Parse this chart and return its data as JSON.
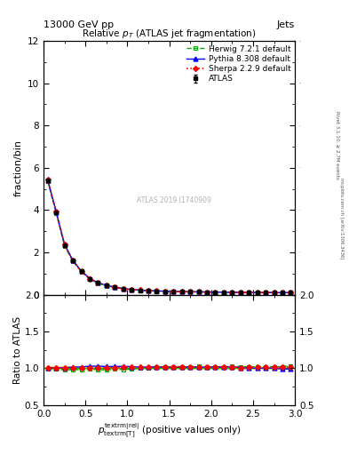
{
  "title": "Relative $p_{T}$ (ATLAS jet fragmentation)",
  "header_left": "13000 GeV pp",
  "header_right": "Jets",
  "right_label": "Rivet 3.1.10, ≥ 2.7M events",
  "right_label2": "mcplots.cern.ch [arXiv:1306.3436]",
  "watermark": "ATLAS 2019 I1740909",
  "ylabel_main": "fraction/bin",
  "ylabel_ratio": "Ratio to ATLAS",
  "xlabel": "$p_{\\mathrm{textrm[T]}}^{\\mathrm{textrm|rel|}}$ (positive values only)",
  "xlim": [
    0,
    3.0
  ],
  "ylim_main": [
    0,
    12
  ],
  "ylim_ratio": [
    0.5,
    2.0
  ],
  "x_data": [
    0.05,
    0.15,
    0.25,
    0.35,
    0.45,
    0.55,
    0.65,
    0.75,
    0.85,
    0.95,
    1.05,
    1.15,
    1.25,
    1.35,
    1.45,
    1.55,
    1.65,
    1.75,
    1.85,
    1.95,
    2.05,
    2.15,
    2.25,
    2.35,
    2.45,
    2.55,
    2.65,
    2.75,
    2.85,
    2.95
  ],
  "atlas_y": [
    5.4,
    3.9,
    2.35,
    1.6,
    1.1,
    0.75,
    0.55,
    0.43,
    0.35,
    0.28,
    0.24,
    0.21,
    0.19,
    0.17,
    0.16,
    0.15,
    0.14,
    0.135,
    0.13,
    0.125,
    0.12,
    0.115,
    0.11,
    0.108,
    0.105,
    0.103,
    0.1,
    0.098,
    0.096,
    0.094
  ],
  "atlas_yerr": [
    0.05,
    0.04,
    0.03,
    0.025,
    0.02,
    0.015,
    0.012,
    0.01,
    0.009,
    0.008,
    0.007,
    0.007,
    0.006,
    0.006,
    0.006,
    0.005,
    0.005,
    0.005,
    0.005,
    0.005,
    0.005,
    0.004,
    0.004,
    0.004,
    0.004,
    0.004,
    0.004,
    0.004,
    0.004,
    0.004
  ],
  "herwig_y": [
    5.35,
    3.85,
    2.3,
    1.57,
    1.08,
    0.74,
    0.54,
    0.42,
    0.345,
    0.275,
    0.237,
    0.21,
    0.19,
    0.172,
    0.162,
    0.153,
    0.143,
    0.137,
    0.133,
    0.127,
    0.122,
    0.117,
    0.113,
    0.11,
    0.107,
    0.105,
    0.102,
    0.1,
    0.098,
    0.097
  ],
  "pythia_y": [
    5.42,
    3.92,
    2.37,
    1.62,
    1.12,
    0.77,
    0.565,
    0.44,
    0.358,
    0.287,
    0.245,
    0.213,
    0.193,
    0.173,
    0.162,
    0.152,
    0.142,
    0.137,
    0.132,
    0.127,
    0.122,
    0.117,
    0.112,
    0.109,
    0.105,
    0.103,
    0.1,
    0.098,
    0.095,
    0.093
  ],
  "sherpa_y": [
    5.45,
    3.92,
    2.37,
    1.61,
    1.1,
    0.755,
    0.553,
    0.432,
    0.353,
    0.283,
    0.243,
    0.213,
    0.192,
    0.172,
    0.163,
    0.153,
    0.143,
    0.137,
    0.132,
    0.127,
    0.122,
    0.117,
    0.112,
    0.109,
    0.106,
    0.104,
    0.101,
    0.099,
    0.097,
    0.095
  ],
  "atlas_band_lo": [
    0.97,
    0.975,
    0.978,
    0.98,
    0.981,
    0.982,
    0.983,
    0.984,
    0.985,
    0.986,
    0.987,
    0.988,
    0.989,
    0.989,
    0.99,
    0.99,
    0.991,
    0.991,
    0.991,
    0.991,
    0.991,
    0.992,
    0.992,
    0.992,
    0.992,
    0.992,
    0.992,
    0.992,
    0.992,
    0.992
  ],
  "atlas_band_hi": [
    1.03,
    1.025,
    1.022,
    1.02,
    1.019,
    1.018,
    1.017,
    1.016,
    1.015,
    1.014,
    1.013,
    1.012,
    1.011,
    1.011,
    1.01,
    1.01,
    1.009,
    1.009,
    1.009,
    1.009,
    1.009,
    1.008,
    1.008,
    1.008,
    1.008,
    1.008,
    1.008,
    1.008,
    1.008,
    1.008
  ],
  "herwig_ratio": [
    0.991,
    0.987,
    0.979,
    0.981,
    0.982,
    0.987,
    0.982,
    0.977,
    0.986,
    0.982,
    0.988,
    1.0,
    1.0,
    1.012,
    1.013,
    1.02,
    1.021,
    1.015,
    1.023,
    1.016,
    1.017,
    1.017,
    1.027,
    1.019,
    1.019,
    1.019,
    1.02,
    1.02,
    1.021,
    1.032
  ],
  "pythia_ratio": [
    1.004,
    1.005,
    1.009,
    1.013,
    1.018,
    1.027,
    1.027,
    1.023,
    1.023,
    1.025,
    1.021,
    1.014,
    1.016,
    1.018,
    1.013,
    1.013,
    1.014,
    1.015,
    1.015,
    1.016,
    1.017,
    1.017,
    1.018,
    1.009,
    1.0,
    1.0,
    1.0,
    1.0,
    0.99,
    0.989
  ],
  "sherpa_ratio": [
    1.009,
    1.005,
    1.009,
    1.006,
    1.0,
    1.007,
    1.005,
    1.005,
    1.009,
    1.011,
    1.013,
    1.014,
    1.011,
    1.012,
    1.019,
    1.02,
    1.021,
    1.015,
    1.015,
    1.016,
    1.017,
    1.017,
    1.018,
    1.009,
    1.01,
    1.01,
    1.01,
    1.01,
    1.01,
    1.011
  ],
  "atlas_color": "#000000",
  "herwig_color": "#00aa00",
  "pythia_color": "#0000ff",
  "sherpa_color": "#ff0000",
  "band_color": "#eeee88"
}
